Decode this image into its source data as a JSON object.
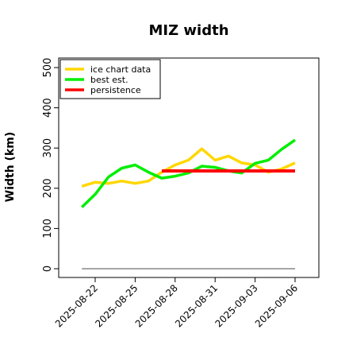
{
  "chart_data": {
    "type": "line",
    "title": "MIZ width",
    "xlabel": "",
    "ylabel": "Width (km)",
    "ylim": [
      0,
      500
    ],
    "yticks": [
      0,
      100,
      200,
      300,
      400,
      500
    ],
    "xlim": [
      "2025-08-20",
      "2025-09-07"
    ],
    "xticks": [
      "2025-08-22",
      "2025-08-25",
      "2025-08-28",
      "2025-08-31",
      "2025-09-03",
      "2025-09-06"
    ],
    "grid": false,
    "legend_position": "top-left",
    "series": [
      {
        "name": "ice chart data",
        "color": "#FFD700",
        "x": [
          "2025-08-21",
          "2025-08-22",
          "2025-08-23",
          "2025-08-24",
          "2025-08-25",
          "2025-08-26",
          "2025-08-27",
          "2025-08-28",
          "2025-08-29",
          "2025-08-30",
          "2025-08-31",
          "2025-09-01",
          "2025-09-02",
          "2025-09-03",
          "2025-09-04",
          "2025-09-05",
          "2025-09-06"
        ],
        "values": [
          205,
          215,
          212,
          218,
          212,
          218,
          240,
          258,
          270,
          298,
          270,
          280,
          263,
          258,
          240,
          248,
          263
        ]
      },
      {
        "name": "best est.",
        "color": "#00EE00",
        "x": [
          "2025-08-21",
          "2025-08-22",
          "2025-08-23",
          "2025-08-24",
          "2025-08-25",
          "2025-08-26",
          "2025-08-27",
          "2025-08-28",
          "2025-08-29",
          "2025-08-30",
          "2025-08-31",
          "2025-09-01",
          "2025-09-02",
          "2025-09-03",
          "2025-09-04",
          "2025-09-05",
          "2025-09-06"
        ],
        "values": [
          153,
          185,
          228,
          250,
          258,
          240,
          225,
          230,
          238,
          255,
          252,
          243,
          238,
          262,
          270,
          297,
          320
        ]
      },
      {
        "name": "persistence",
        "color": "#FF0000",
        "x": [
          "2025-08-27",
          "2025-09-06"
        ],
        "values": [
          243,
          243
        ]
      },
      {
        "name": "",
        "color": "#888888",
        "x": [
          "2025-08-21",
          "2025-09-06"
        ],
        "values": [
          0,
          0
        ]
      }
    ]
  }
}
